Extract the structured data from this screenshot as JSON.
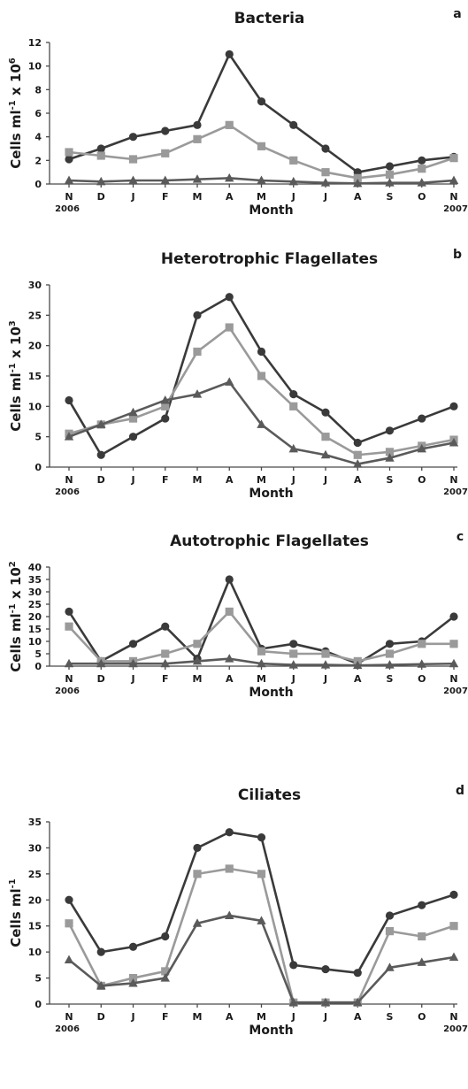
{
  "chart_data": [
    {
      "type": "line",
      "title": "Bacteria",
      "panel_letter": "a",
      "ylabel": "Cells ml",
      "ylabel_sup1": "-1",
      "ylabel_mid": " x 10",
      "ylabel_sup2": "6",
      "xlabel": "Month",
      "ylim": [
        0,
        12
      ],
      "yticks": [
        0,
        2,
        4,
        6,
        8,
        10,
        12
      ],
      "categories": [
        "N",
        "D",
        "J",
        "F",
        "M",
        "A",
        "M",
        "J",
        "J",
        "A",
        "S",
        "O",
        "N"
      ],
      "year_start": "2006",
      "year_end": "2007",
      "grid": false,
      "series": [
        {
          "marker": "circle",
          "color": "#3a3a3a",
          "values": [
            2.1,
            3.0,
            4.0,
            4.5,
            5.0,
            11.0,
            7.0,
            5.0,
            3.0,
            1.0,
            1.5,
            2.0,
            2.3
          ]
        },
        {
          "marker": "square",
          "color": "#9a9a9a",
          "values": [
            2.7,
            2.4,
            2.1,
            2.6,
            3.8,
            5.0,
            3.2,
            2.0,
            1.0,
            0.5,
            0.8,
            1.3,
            2.2
          ]
        },
        {
          "marker": "triangle",
          "color": "#5a5a5a",
          "values": [
            0.3,
            0.2,
            0.3,
            0.3,
            0.4,
            0.5,
            0.3,
            0.2,
            0.1,
            0.05,
            0.1,
            0.1,
            0.3
          ]
        }
      ]
    },
    {
      "type": "line",
      "title": "Heterotrophic Flagellates",
      "panel_letter": "b",
      "ylabel": "Cells ml",
      "ylabel_sup1": "-1",
      "ylabel_mid": " x 10",
      "ylabel_sup2": "3",
      "xlabel": "Month",
      "ylim": [
        0,
        30
      ],
      "yticks": [
        0,
        5,
        10,
        15,
        20,
        25,
        30
      ],
      "categories": [
        "N",
        "D",
        "J",
        "F",
        "M",
        "A",
        "M",
        "J",
        "J",
        "A",
        "S",
        "O",
        "N"
      ],
      "year_start": "2006",
      "year_end": "2007",
      "grid": false,
      "series": [
        {
          "marker": "circle",
          "color": "#3a3a3a",
          "values": [
            11,
            2,
            5,
            8,
            25,
            28,
            19,
            12,
            9,
            4,
            6,
            8,
            10
          ]
        },
        {
          "marker": "square",
          "color": "#9a9a9a",
          "values": [
            5.5,
            7,
            8,
            10,
            19,
            23,
            15,
            10,
            5,
            2,
            2.5,
            3.5,
            4.5
          ]
        },
        {
          "marker": "triangle",
          "color": "#5a5a5a",
          "values": [
            5,
            7,
            9,
            11,
            12,
            14,
            7,
            3,
            2,
            0.5,
            1.5,
            3,
            4
          ]
        }
      ]
    },
    {
      "type": "line",
      "title": "Autotrophic Flagellates",
      "panel_letter": "c",
      "ylabel": "Cells ml",
      "ylabel_sup1": "-1",
      "ylabel_mid": " x 10",
      "ylabel_sup2": "2",
      "xlabel": "Month",
      "ylim": [
        0,
        40
      ],
      "yticks": [
        0,
        5,
        10,
        15,
        20,
        25,
        30,
        35,
        40
      ],
      "categories": [
        "N",
        "D",
        "J",
        "F",
        "M",
        "A",
        "M",
        "J",
        "J",
        "A",
        "S",
        "O",
        "N"
      ],
      "year_start": "2006",
      "year_end": "2007",
      "grid": false,
      "series": [
        {
          "marker": "circle",
          "color": "#3a3a3a",
          "values": [
            22,
            2,
            9,
            16,
            3,
            35,
            7,
            9,
            6,
            1,
            9,
            10,
            20
          ]
        },
        {
          "marker": "square",
          "color": "#9a9a9a",
          "values": [
            16,
            2,
            2,
            5,
            9,
            22,
            6,
            5,
            5,
            2,
            5,
            9,
            9
          ]
        },
        {
          "marker": "triangle",
          "color": "#5a5a5a",
          "values": [
            1,
            1,
            1,
            1,
            2,
            3,
            1,
            0.5,
            0.5,
            0.3,
            0.5,
            0.8,
            1
          ]
        }
      ]
    },
    {
      "type": "line",
      "title": "Ciliates",
      "panel_letter": "d",
      "ylabel": "Cells ml",
      "ylabel_sup1": "-1",
      "ylabel_mid": "",
      "ylabel_sup2": "",
      "xlabel": "Month",
      "ylim": [
        0,
        35
      ],
      "yticks": [
        0,
        5,
        10,
        15,
        20,
        25,
        30,
        35
      ],
      "categories": [
        "N",
        "D",
        "J",
        "F",
        "M",
        "A",
        "M",
        "J",
        "J",
        "A",
        "S",
        "O",
        "N"
      ],
      "year_start": "2006",
      "year_end": "2007",
      "grid": false,
      "series": [
        {
          "marker": "circle",
          "color": "#3a3a3a",
          "values": [
            20,
            10,
            11,
            13,
            30,
            33,
            32,
            7.5,
            6.7,
            6,
            17,
            19,
            21
          ]
        },
        {
          "marker": "square",
          "color": "#9a9a9a",
          "values": [
            15.5,
            3.5,
            5,
            6.3,
            25,
            26,
            25,
            0.3,
            0.3,
            0.3,
            14,
            13,
            15
          ]
        },
        {
          "marker": "triangle",
          "color": "#5a5a5a",
          "values": [
            8.5,
            3.5,
            4,
            5,
            15.5,
            17,
            16,
            0.3,
            0.3,
            0.3,
            7,
            8,
            9
          ]
        }
      ]
    }
  ]
}
